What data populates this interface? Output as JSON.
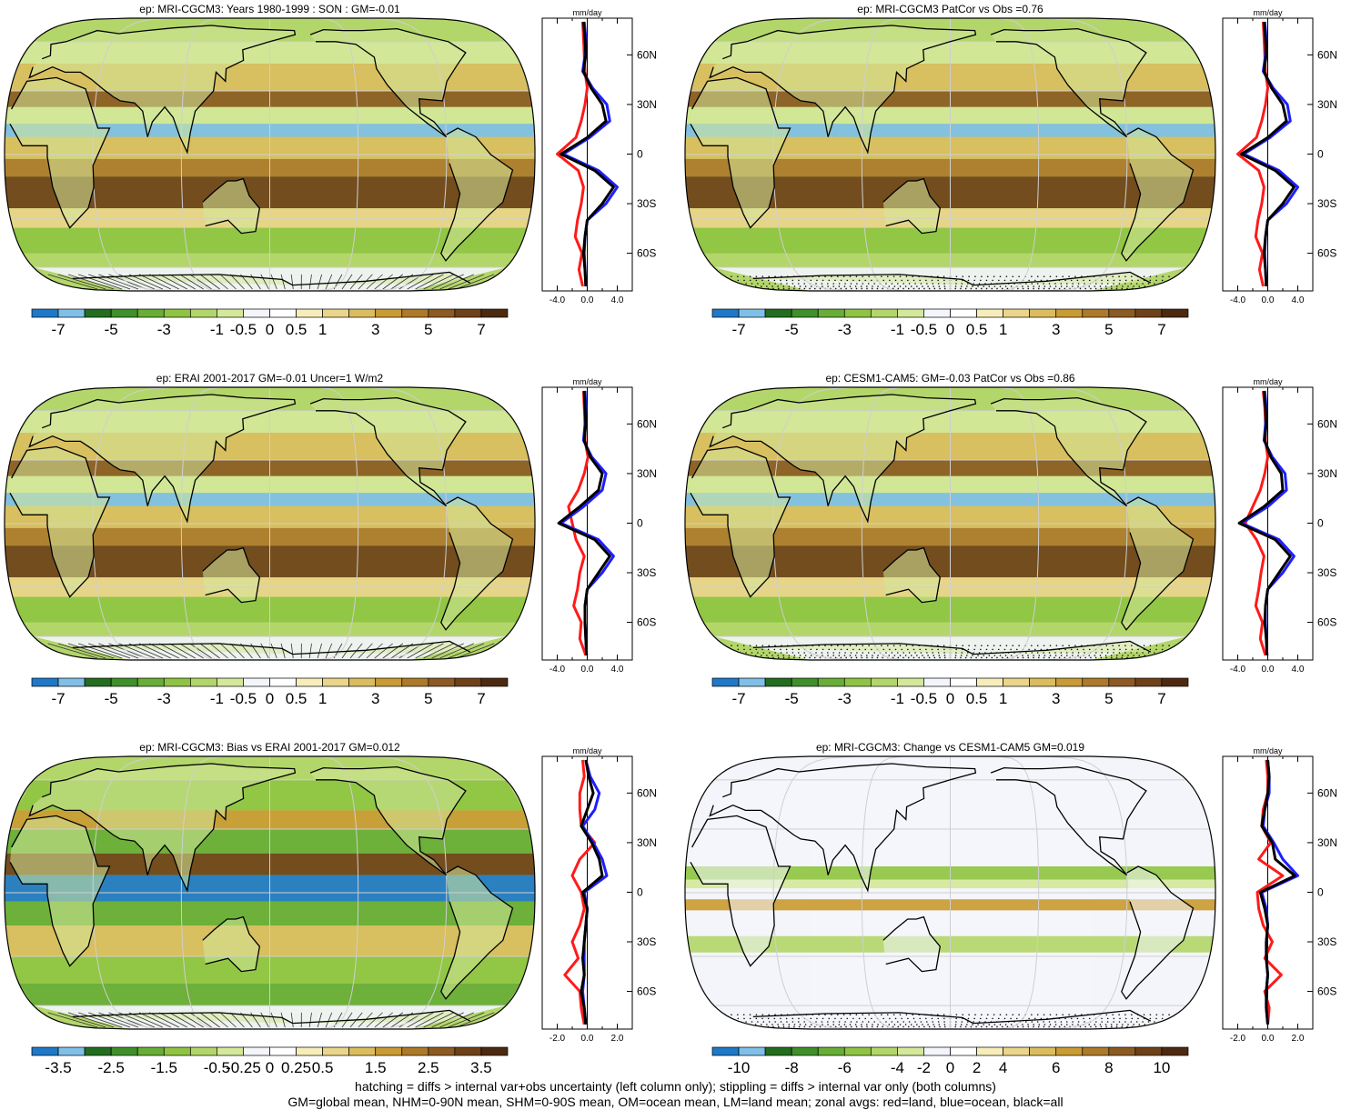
{
  "colors": {
    "dry_scale": [
      "#1f78c8",
      "#7fbfe8",
      "#236d1e",
      "#3f8f2a",
      "#67ad36",
      "#8fc442",
      "#b3d66a",
      "#d4e89a",
      "#f4f5fb",
      "#ffffff",
      "#f6edba",
      "#ead58a",
      "#dbbd5e",
      "#c99b33",
      "#ad7a2a",
      "#8c5a22",
      "#6e4118",
      "#4d2a0f"
    ],
    "zonal_land": "#ff1a1a",
    "zonal_ocean": "#1e1eff",
    "zonal_all": "#000000",
    "grid": "#cfcfcf",
    "coast": "#000000"
  },
  "chart_data": [
    {
      "type": "heatmap",
      "title": "ep: MRI-CGCM3: Years 1980-1999 : SON : GM=-0.01",
      "colorbar_labels": [
        "-7",
        "-5",
        "-3",
        "-1",
        "-0.5",
        "0",
        "0.5",
        "1",
        "3",
        "5",
        "7"
      ],
      "zonal_unit": "mm/day",
      "zonal_xticks": [
        "-4.0",
        "0.0",
        "4.0"
      ],
      "zonal_xlim": [
        -6,
        6
      ],
      "lat_labels": [
        "60N",
        "30N",
        "0",
        "30S",
        "60S"
      ],
      "hatching": "hatch",
      "field": "mean",
      "zonal": {
        "lat": [
          80,
          70,
          60,
          50,
          40,
          30,
          20,
          10,
          0,
          -10,
          -20,
          -30,
          -40,
          -50,
          -60,
          -70,
          -80
        ],
        "all": [
          -0.5,
          -0.3,
          -0.2,
          -0.5,
          0.5,
          2.0,
          2.5,
          0.0,
          -3.5,
          1.0,
          3.5,
          2.0,
          0.0,
          -0.3,
          -0.5,
          -0.3,
          -0.2
        ],
        "ocean": [
          -0.4,
          -0.2,
          -0.3,
          -0.6,
          0.7,
          2.6,
          3.0,
          0.3,
          -3.2,
          1.5,
          4.0,
          2.5,
          0.0,
          -0.3,
          -0.4,
          -0.3,
          -0.2
        ],
        "land": [
          -0.6,
          -0.5,
          -0.4,
          -0.3,
          0.0,
          -0.3,
          -0.8,
          -1.5,
          -4.0,
          -1.2,
          -0.5,
          -0.8,
          -1.3,
          -1.6,
          -0.7,
          -1.1,
          -0.6
        ]
      }
    },
    {
      "type": "heatmap",
      "title": "ep: MRI-CGCM3 PatCor vs Obs =0.76",
      "colorbar_labels": [
        "-7",
        "-5",
        "-3",
        "-1",
        "-0.5",
        "0",
        "0.5",
        "1",
        "3",
        "5",
        "7"
      ],
      "zonal_unit": "mm/day",
      "zonal_xticks": [
        "-4.0",
        "0.0",
        "4.0"
      ],
      "zonal_xlim": [
        -6,
        6
      ],
      "lat_labels": [
        "60N",
        "30N",
        "0",
        "30S",
        "60S"
      ],
      "hatching": "stipple",
      "field": "mean",
      "zonal": {
        "lat": [
          80,
          70,
          60,
          50,
          40,
          30,
          20,
          10,
          0,
          -10,
          -20,
          -30,
          -40,
          -50,
          -60,
          -70,
          -80
        ],
        "all": [
          -0.5,
          -0.3,
          -0.2,
          -0.5,
          0.5,
          2.0,
          2.5,
          0.0,
          -3.5,
          1.0,
          3.5,
          2.0,
          0.0,
          -0.3,
          -0.5,
          -0.3,
          -0.2
        ],
        "ocean": [
          -0.4,
          -0.2,
          -0.3,
          -0.6,
          0.7,
          2.6,
          3.0,
          0.3,
          -3.2,
          1.5,
          4.0,
          2.5,
          0.0,
          -0.3,
          -0.4,
          -0.3,
          -0.2
        ],
        "land": [
          -0.6,
          -0.5,
          -0.4,
          -0.3,
          0.0,
          -0.3,
          -0.8,
          -1.5,
          -4.0,
          -1.2,
          -0.5,
          -0.8,
          -1.3,
          -1.6,
          -0.7,
          -1.1,
          -0.6
        ]
      }
    },
    {
      "type": "heatmap",
      "title": "ep: ERAI 2001-2017 GM=-0.01 Uncer=1 W/m2",
      "colorbar_labels": [
        "-7",
        "-5",
        "-3",
        "-1",
        "-0.5",
        "0",
        "0.5",
        "1",
        "3",
        "5",
        "7"
      ],
      "zonal_unit": "mm/day",
      "zonal_xticks": [
        "-4.0",
        "0.0",
        "4.0"
      ],
      "zonal_xlim": [
        -6,
        6
      ],
      "lat_labels": [
        "60N",
        "30N",
        "0",
        "30S",
        "60S"
      ],
      "hatching": "hatch",
      "field": "mean",
      "zonal": {
        "lat": [
          80,
          70,
          60,
          50,
          40,
          30,
          20,
          10,
          0,
          -10,
          -20,
          -30,
          -40,
          -50,
          -60,
          -70,
          -80
        ],
        "all": [
          -0.4,
          -0.3,
          -0.2,
          -0.4,
          0.4,
          2.0,
          1.5,
          -1.0,
          -3.8,
          1.0,
          3.0,
          1.5,
          0.0,
          -0.3,
          -0.3,
          -0.2,
          -0.1
        ],
        "ocean": [
          -0.3,
          -0.2,
          -0.3,
          -0.5,
          0.6,
          2.5,
          2.0,
          -0.5,
          -3.5,
          1.5,
          3.5,
          2.0,
          0.0,
          -0.3,
          -0.3,
          -0.2,
          -0.1
        ],
        "land": [
          -0.5,
          -0.4,
          -0.3,
          -0.3,
          0.1,
          -0.4,
          -1.2,
          -2.5,
          -2.0,
          -1.5,
          -0.4,
          -1.0,
          -1.3,
          -1.8,
          -0.8,
          -1.0,
          -0.2
        ]
      }
    },
    {
      "type": "heatmap",
      "title": "ep: CESM1-CAM5: GM=-0.03 PatCor vs Obs =0.86",
      "colorbar_labels": [
        "-7",
        "-5",
        "-3",
        "-1",
        "-0.5",
        "0",
        "0.5",
        "1",
        "3",
        "5",
        "7"
      ],
      "zonal_unit": "mm/day",
      "zonal_xticks": [
        "-4.0",
        "0.0",
        "4.0"
      ],
      "zonal_xlim": [
        -6,
        6
      ],
      "lat_labels": [
        "60N",
        "30N",
        "0",
        "30S",
        "60S"
      ],
      "hatching": "stipple",
      "field": "mean",
      "zonal": {
        "lat": [
          80,
          70,
          60,
          50,
          40,
          30,
          20,
          10,
          0,
          -10,
          -20,
          -30,
          -40,
          -50,
          -60,
          -70,
          -80
        ],
        "all": [
          -0.5,
          -0.3,
          -0.2,
          -0.4,
          0.4,
          1.8,
          2.0,
          -0.5,
          -3.8,
          1.0,
          3.0,
          1.5,
          0.0,
          -0.3,
          -0.4,
          -0.2,
          -0.1
        ],
        "ocean": [
          -0.4,
          -0.2,
          -0.3,
          -0.5,
          0.6,
          2.3,
          2.5,
          0.0,
          -3.5,
          1.5,
          3.5,
          2.0,
          0.0,
          -0.3,
          -0.3,
          -0.2,
          -0.1
        ],
        "land": [
          -0.6,
          -0.4,
          -0.3,
          -0.3,
          0.0,
          -0.4,
          -1.0,
          -2.0,
          -3.0,
          -1.5,
          -0.5,
          -0.9,
          -1.2,
          -1.6,
          -0.7,
          -1.0,
          -0.3
        ]
      }
    },
    {
      "type": "heatmap",
      "title": "ep: MRI-CGCM3: Bias vs ERAI 2001-2017  GM=0.012",
      "colorbar_labels": [
        "-3.5",
        "-2.5",
        "-1.5",
        "-0.5",
        "-0.25",
        "0",
        "0.25",
        "0.5",
        "1.5",
        "2.5",
        "3.5"
      ],
      "zonal_unit": "mm/day",
      "zonal_xticks": [
        "-2.0",
        "0.0",
        "2.0"
      ],
      "zonal_xlim": [
        -3,
        3
      ],
      "lat_labels": [
        "60N",
        "30N",
        "0",
        "30S",
        "60S"
      ],
      "hatching": "hatch",
      "field": "bias",
      "zonal": {
        "lat": [
          80,
          70,
          60,
          50,
          40,
          30,
          20,
          10,
          0,
          -10,
          -20,
          -30,
          -40,
          -50,
          -60,
          -70,
          -80
        ],
        "all": [
          -0.1,
          0.1,
          0.4,
          0.0,
          -0.4,
          0.3,
          0.8,
          1.0,
          -0.3,
          0.0,
          -0.1,
          -0.2,
          -0.3,
          -0.2,
          -0.4,
          -0.2,
          -0.1
        ],
        "ocean": [
          -0.1,
          0.2,
          0.8,
          0.5,
          -0.3,
          0.4,
          1.0,
          1.3,
          -0.2,
          0.0,
          -0.1,
          -0.2,
          -0.2,
          -0.2,
          -0.3,
          -0.2,
          -0.1
        ],
        "land": [
          -0.3,
          -0.2,
          -0.5,
          -0.5,
          -0.4,
          0.5,
          -0.5,
          -1.0,
          -0.4,
          -0.2,
          -0.5,
          -1.0,
          -0.6,
          -1.5,
          -0.5,
          -0.4,
          -0.2
        ]
      }
    },
    {
      "type": "heatmap",
      "title": "ep: MRI-CGCM3: Change vs CESM1-CAM5 GM=0.019",
      "colorbar_labels": [
        "-10",
        "-8",
        "-6",
        "-4",
        "-2",
        "0",
        "2",
        "4",
        "6",
        "8",
        "10"
      ],
      "zonal_unit": "mm/day",
      "zonal_xticks": [
        "-2.0",
        "0.0",
        "2.0"
      ],
      "zonal_xlim": [
        -3,
        3
      ],
      "lat_labels": [
        "60N",
        "30N",
        "0",
        "30S",
        "60S"
      ],
      "hatching": "stipple",
      "field": "change",
      "zonal": {
        "lat": [
          80,
          70,
          60,
          50,
          40,
          30,
          20,
          10,
          0,
          -10,
          -20,
          -30,
          -40,
          -50,
          -60,
          -70,
          -80
        ],
        "all": [
          0.0,
          0.1,
          0.0,
          -0.2,
          -0.4,
          0.3,
          0.5,
          1.8,
          -0.5,
          -0.2,
          0.0,
          -0.1,
          -0.1,
          0.0,
          -0.1,
          -0.1,
          0.0
        ],
        "ocean": [
          0.0,
          0.1,
          0.1,
          -0.2,
          -0.3,
          0.4,
          1.0,
          2.0,
          -0.4,
          -0.1,
          0.0,
          -0.1,
          -0.1,
          0.0,
          -0.1,
          -0.1,
          0.0
        ],
        "land": [
          -0.1,
          0.0,
          0.0,
          -0.3,
          -0.4,
          0.2,
          -0.6,
          1.0,
          -0.7,
          -0.6,
          -0.3,
          0.3,
          -0.2,
          0.9,
          -0.2,
          0.1,
          0.0
        ]
      }
    }
  ],
  "footer": {
    "line1": "hatching = diffs > internal var+obs uncertainty (left column only); stippling = diffs > internal var only (both columns)",
    "line2": "GM=global mean, NHM=0-90N mean, SHM=0-90S mean, OM=ocean mean, LM=land mean; zonal avgs: red=land, blue=ocean, black=all"
  }
}
